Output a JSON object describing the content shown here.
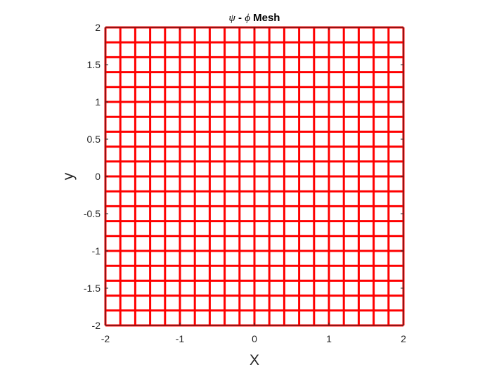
{
  "chart_data": {
    "type": "line",
    "title": {
      "sym1": "ψ",
      "sep": " - ",
      "sym2": "ϕ",
      "rest": " Mesh"
    },
    "xlabel": "X",
    "ylabel": "y",
    "xlim": [
      -2,
      2
    ],
    "ylim": [
      -2,
      2
    ],
    "xticks": [
      -2,
      -1,
      0,
      1,
      2
    ],
    "yticks": [
      -2,
      -1.5,
      -1,
      -0.5,
      0,
      0.5,
      1,
      1.5,
      2
    ],
    "xtick_labels": [
      "-2",
      "-1",
      "0",
      "1",
      "2"
    ],
    "ytick_labels": [
      "-2",
      "-1.5",
      "-1",
      "-0.5",
      "0",
      "0.5",
      "1",
      "1.5",
      "2"
    ],
    "grid": false,
    "series": [
      {
        "kind": "vertical-lines",
        "x": [
          -2,
          -1.8,
          -1.6,
          -1.4,
          -1.2,
          -1,
          -0.8,
          -0.6,
          -0.4,
          -0.2,
          0,
          0.2,
          0.4,
          0.6,
          0.8,
          1,
          1.2,
          1.4,
          1.6,
          1.8,
          2
        ]
      },
      {
        "kind": "horizontal-lines",
        "y": [
          -2,
          -1.8,
          -1.6,
          -1.4,
          -1.2,
          -1,
          -0.8,
          -0.6,
          -0.4,
          -0.2,
          0,
          0.2,
          0.4,
          0.6,
          0.8,
          1,
          1.2,
          1.4,
          1.6,
          1.8,
          2
        ]
      }
    ],
    "line_color": "#ff0000"
  }
}
